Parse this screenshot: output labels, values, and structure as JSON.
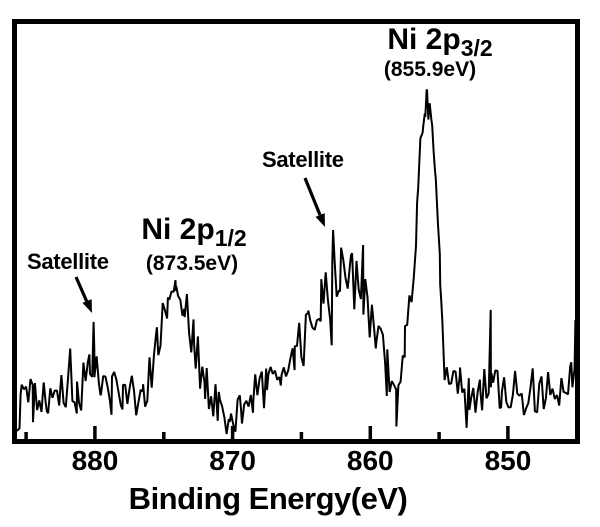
{
  "figure": {
    "background_color": "#ffffff",
    "line_color": "#000000",
    "text_color": "#000000"
  },
  "labels": {
    "xlabel": "Binding Energy(eV)",
    "ni2p32_main": "Ni 2p",
    "ni2p32_sub": "3/2",
    "ni2p32_ev": "(855.9eV)",
    "ni2p12_main": "Ni 2p",
    "ni2p12_sub": "1/2",
    "ni2p12_ev": "(873.5eV)",
    "satellite_center": "Satellite",
    "satellite_left": "Satellite"
  },
  "chart_data": {
    "type": "line",
    "title": "",
    "xlabel": "Binding Energy(eV)",
    "ylabel": "",
    "x_axis_reversed": true,
    "x_range_eV": [
      885.8,
      845.1
    ],
    "x_ticks_major": [
      880,
      870,
      860,
      850
    ],
    "x_ticks_minor": [
      885,
      875,
      865,
      855
    ],
    "grid": false,
    "legend": "none",
    "peaks": [
      {
        "label": "Ni 2p3/2",
        "energy_eV": 855.9,
        "relative_intensity": 100
      },
      {
        "label": "Ni 2p1/2",
        "energy_eV": 873.5,
        "relative_intensity": 43
      },
      {
        "label": "Satellite",
        "energy_eV": 862.2,
        "relative_intensity": 60
      },
      {
        "label": "Satellite",
        "energy_eV": 880.1,
        "relative_intensity": 34
      }
    ],
    "series_note": "envelope anchors [binding_energy_eV, intensity_0_100, noise_amplitude]; noisy raw XPS trace generated from these",
    "envelope_anchors": [
      [
        885.8,
        2.8,
        2.8
      ],
      [
        885.4,
        10.7,
        6.8
      ],
      [
        884.5,
        12.7,
        7.3
      ],
      [
        883.5,
        12.1,
        6.8
      ],
      [
        882.5,
        13.2,
        6.8
      ],
      [
        881.3,
        14.1,
        6.8
      ],
      [
        880.4,
        18.3,
        7.3
      ],
      [
        880.05,
        23.4,
        5.6
      ],
      [
        879.6,
        16.3,
        6.8
      ],
      [
        878.8,
        13.5,
        6.2
      ],
      [
        878.0,
        14.4,
        6.2
      ],
      [
        877.0,
        13.2,
        5.6
      ],
      [
        876.5,
        13.5,
        5.6
      ],
      [
        875.5,
        26.2,
        6.8
      ],
      [
        874.7,
        38.9,
        6.2
      ],
      [
        874.1,
        43.1,
        5.1
      ],
      [
        873.5,
        37.5,
        6.2
      ],
      [
        872.8,
        27.6,
        6.8
      ],
      [
        872.0,
        16.3,
        6.2
      ],
      [
        871.0,
        9.3,
        5.6
      ],
      [
        870.2,
        6.5,
        4.5
      ],
      [
        869.4,
        9.9,
        5.6
      ],
      [
        868.5,
        13.5,
        6.2
      ],
      [
        867.5,
        16.3,
        6.8
      ],
      [
        866.5,
        20.6,
        7.3
      ],
      [
        865.5,
        26.2,
        7.9
      ],
      [
        864.5,
        31.8,
        8.5
      ],
      [
        863.6,
        38.9,
        9.0
      ],
      [
        862.8,
        44.5,
        9.0
      ],
      [
        862.2,
        47.3,
        8.5
      ],
      [
        861.4,
        45.1,
        8.5
      ],
      [
        860.5,
        41.7,
        7.9
      ],
      [
        859.6,
        31.8,
        7.3
      ],
      [
        858.8,
        22.0,
        7.3
      ],
      [
        858.1,
        17.2,
        6.8
      ],
      [
        857.5,
        26.2,
        8.5
      ],
      [
        857.0,
        45.9,
        10.7
      ],
      [
        856.6,
        64.2,
        7.9
      ],
      [
        856.35,
        85.4,
        2.8
      ],
      [
        856.15,
        88.7,
        1.7
      ],
      [
        856.0,
        93.2,
        1.4
      ],
      [
        855.9,
        100.0,
        0.8
      ],
      [
        855.78,
        91.5,
        0.8
      ],
      [
        855.68,
        95.8,
        0.8
      ],
      [
        855.5,
        89.0,
        1.4
      ],
      [
        855.3,
        76.3,
        2.3
      ],
      [
        855.1,
        65.6,
        2.8
      ],
      [
        854.95,
        51.0,
        3.9
      ],
      [
        854.85,
        40.3,
        5.1
      ],
      [
        854.6,
        20.0,
        6.2
      ],
      [
        854.2,
        13.5,
        6.2
      ],
      [
        853.5,
        15.5,
        6.2
      ],
      [
        852.8,
        13.2,
        6.2
      ],
      [
        852.0,
        14.9,
        6.8
      ],
      [
        851.2,
        20.0,
        6.8
      ],
      [
        850.5,
        14.4,
        6.2
      ],
      [
        849.8,
        15.5,
        6.2
      ],
      [
        849.0,
        13.5,
        6.2
      ],
      [
        848.2,
        14.9,
        6.2
      ],
      [
        847.4,
        13.8,
        6.2
      ],
      [
        846.6,
        15.5,
        6.2
      ],
      [
        845.8,
        16.3,
        6.2
      ],
      [
        845.4,
        19.2,
        5.1
      ],
      [
        845.1,
        19.2,
        4.0
      ]
    ],
    "forced_spikes": [
      [
        880.1,
        34.1
      ],
      [
        874.15,
        45.9
      ],
      [
        862.7,
        60.0
      ],
      [
        851.25,
        37.5
      ],
      [
        845.1,
        34.6
      ]
    ],
    "noise": {
      "seed": 5,
      "step_eV": 0.16,
      "spike_chance": 0.07,
      "spike_gain": 1.9
    }
  }
}
